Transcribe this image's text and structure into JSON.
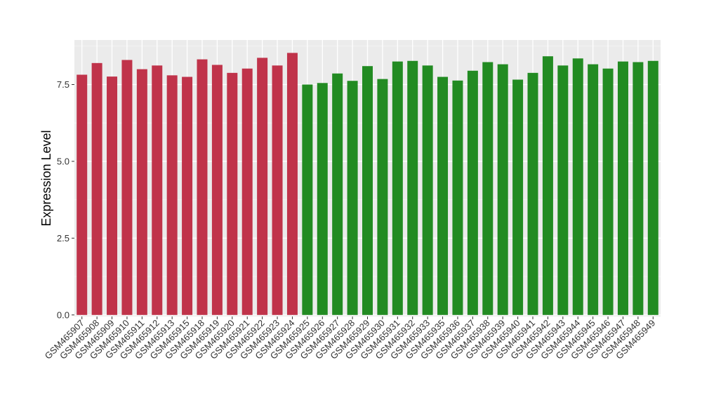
{
  "chart_data": {
    "type": "bar",
    "title": "",
    "xlabel": "",
    "ylabel": "Expression Level",
    "ylim": [
      -0.05,
      8.95
    ],
    "yticks": [
      0.0,
      2.5,
      5.0,
      7.5
    ],
    "ytick_labels": [
      "0.0",
      "2.5",
      "5.0",
      "7.5"
    ],
    "grid": true,
    "legend": "none",
    "background_color": "#ebebeb",
    "grid_major_color": "#ffffff",
    "categories": [
      "GSM465907",
      "GSM465908",
      "GSM465909",
      "GSM465910",
      "GSM465911",
      "GSM465912",
      "GSM465913",
      "GSM465915",
      "GSM465918",
      "GSM465919",
      "GSM465920",
      "GSM465921",
      "GSM465922",
      "GSM465923",
      "GSM465924",
      "GSM465925",
      "GSM465926",
      "GSM465927",
      "GSM465928",
      "GSM465929",
      "GSM465930",
      "GSM465931",
      "GSM465932",
      "GSM465933",
      "GSM465935",
      "GSM465936",
      "GSM465937",
      "GSM465938",
      "GSM465939",
      "GSM465940",
      "GSM465941",
      "GSM465942",
      "GSM465943",
      "GSM465944",
      "GSM465945",
      "GSM465946",
      "GSM465947",
      "GSM465948",
      "GSM465949"
    ],
    "values": [
      7.82,
      8.2,
      7.76,
      8.3,
      8.0,
      8.12,
      7.8,
      7.75,
      8.32,
      8.14,
      7.88,
      8.02,
      8.37,
      8.12,
      8.53,
      7.5,
      7.55,
      7.86,
      7.62,
      8.1,
      7.68,
      8.25,
      8.27,
      8.12,
      7.75,
      7.63,
      7.95,
      8.23,
      8.16,
      7.66,
      7.88,
      8.42,
      8.12,
      8.35,
      8.16,
      8.02,
      8.25,
      8.23,
      8.27
    ],
    "colors": [
      "#c0334a",
      "#c0334a",
      "#c0334a",
      "#c0334a",
      "#c0334a",
      "#c0334a",
      "#c0334a",
      "#c0334a",
      "#c0334a",
      "#c0334a",
      "#c0334a",
      "#c0334a",
      "#c0334a",
      "#c0334a",
      "#c0334a",
      "#228b22",
      "#228b22",
      "#228b22",
      "#228b22",
      "#228b22",
      "#228b22",
      "#228b22",
      "#228b22",
      "#228b22",
      "#228b22",
      "#228b22",
      "#228b22",
      "#228b22",
      "#228b22",
      "#228b22",
      "#228b22",
      "#228b22",
      "#228b22",
      "#228b22",
      "#228b22",
      "#228b22",
      "#228b22",
      "#228b22",
      "#228b22"
    ]
  }
}
